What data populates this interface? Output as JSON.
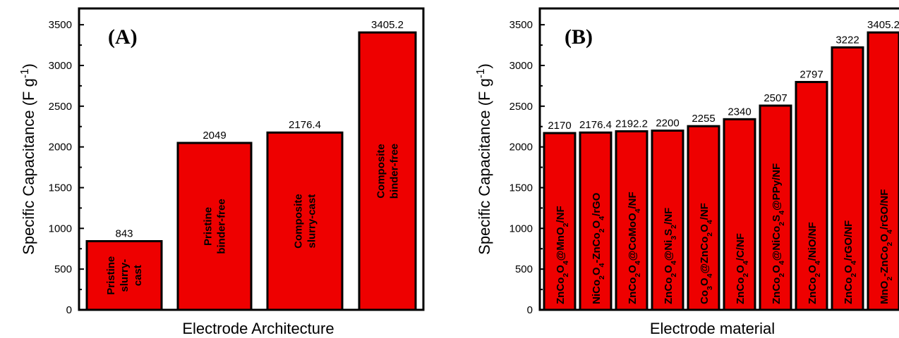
{
  "chart_data": [
    {
      "type": "bar",
      "panel_label": "(A)",
      "xlabel": "Electrode Architecture",
      "ylabel": "Specific Capacitance (F g",
      "ylabel_sup": "-1",
      "ylabel_end": ")",
      "ylim": [
        0,
        3700
      ],
      "yticks": [
        0,
        500,
        1000,
        1500,
        2000,
        2500,
        3000,
        3500
      ],
      "grid": false,
      "bar_color": "#ee0000",
      "categories": [
        [
          {
            "t": "Pristine"
          },
          {
            "t": "slurry-"
          },
          {
            "t": "cast"
          }
        ],
        [
          {
            "t": "Pristine"
          },
          {
            "t": "binder-free"
          }
        ],
        [
          {
            "t": "Composite"
          },
          {
            "t": "slurry-cast"
          }
        ],
        [
          {
            "t": "Composite"
          },
          {
            "t": "binder-free"
          }
        ]
      ],
      "values": [
        843,
        2049,
        2176.4,
        3405.2
      ],
      "value_labels": [
        "843",
        "2049",
        "2176.4",
        "3405.2"
      ]
    },
    {
      "type": "bar",
      "panel_label": "(B)",
      "xlabel": "Electrode material",
      "ylabel": "Specific Capacitance (F g",
      "ylabel_sup": "-1",
      "ylabel_end": ")",
      "ylim": [
        0,
        3700
      ],
      "yticks": [
        0,
        500,
        1000,
        1500,
        2000,
        2500,
        3000,
        3500
      ],
      "grid": false,
      "bar_color": "#ee0000",
      "categories": [
        [
          {
            "t": "ZnCo"
          },
          {
            "t": "2",
            "s": "sub"
          },
          {
            "t": "O"
          },
          {
            "t": "4",
            "s": "sub"
          },
          {
            "t": "@MnO"
          },
          {
            "t": "2",
            "s": "sub"
          },
          {
            "t": "/NF"
          }
        ],
        [
          {
            "t": "NiCo"
          },
          {
            "t": "2",
            "s": "sub"
          },
          {
            "t": "O"
          },
          {
            "t": "4",
            "s": "sub"
          },
          {
            "t": "-ZnCo"
          },
          {
            "t": "2",
            "s": "sub"
          },
          {
            "t": "O"
          },
          {
            "t": "4",
            "s": "sub"
          },
          {
            "t": "/rGO"
          }
        ],
        [
          {
            "t": "ZnCo"
          },
          {
            "t": "2",
            "s": "sub"
          },
          {
            "t": "O"
          },
          {
            "t": "4",
            "s": "sub"
          },
          {
            "t": "@CoMoO"
          },
          {
            "t": "4",
            "s": "sub"
          },
          {
            "t": "/NF"
          }
        ],
        [
          {
            "t": "ZnCo"
          },
          {
            "t": "2",
            "s": "sub"
          },
          {
            "t": "O"
          },
          {
            "t": "4",
            "s": "sub"
          },
          {
            "t": "@Ni"
          },
          {
            "t": "3",
            "s": "sub"
          },
          {
            "t": "S"
          },
          {
            "t": "2",
            "s": "sub"
          },
          {
            "t": "/NF"
          }
        ],
        [
          {
            "t": "Co"
          },
          {
            "t": "3",
            "s": "sub"
          },
          {
            "t": "O"
          },
          {
            "t": "4",
            "s": "sub"
          },
          {
            "t": "@ZnCo"
          },
          {
            "t": "2",
            "s": "sub"
          },
          {
            "t": "O"
          },
          {
            "t": "4",
            "s": "sub"
          },
          {
            "t": "/NF"
          }
        ],
        [
          {
            "t": "ZnCo"
          },
          {
            "t": "2",
            "s": "sub"
          },
          {
            "t": "O"
          },
          {
            "t": "4",
            "s": "sub"
          },
          {
            "t": "/C/NF"
          }
        ],
        [
          {
            "t": "ZnCo"
          },
          {
            "t": "2",
            "s": "sub"
          },
          {
            "t": "O"
          },
          {
            "t": "4",
            "s": "sub"
          },
          {
            "t": "@NiCo"
          },
          {
            "t": "2",
            "s": "sub"
          },
          {
            "t": "S"
          },
          {
            "t": "4",
            "s": "sub"
          },
          {
            "t": "@PPy/NF"
          }
        ],
        [
          {
            "t": "ZnCo"
          },
          {
            "t": "2",
            "s": "sub"
          },
          {
            "t": "O"
          },
          {
            "t": "4",
            "s": "sub"
          },
          {
            "t": "/NiO/NF"
          }
        ],
        [
          {
            "t": "ZnCo"
          },
          {
            "t": "2",
            "s": "sub"
          },
          {
            "t": "O"
          },
          {
            "t": "4",
            "s": "sub"
          },
          {
            "t": "/rGO/NF"
          }
        ],
        [
          {
            "t": "MnO"
          },
          {
            "t": "2",
            "s": "sub"
          },
          {
            "t": "-ZnCo"
          },
          {
            "t": "2",
            "s": "sub"
          },
          {
            "t": "O"
          },
          {
            "t": "4",
            "s": "sub"
          },
          {
            "t": "/rGO/NF"
          }
        ]
      ],
      "values": [
        2170,
        2176.4,
        2192.2,
        2200,
        2255,
        2340,
        2507,
        2797,
        3222,
        3405.2
      ],
      "value_labels": [
        "2170",
        "2176.4",
        "2192.2",
        "2200",
        "2255",
        "2340",
        "2507",
        "2797",
        "3222",
        "3405.2"
      ]
    }
  ]
}
